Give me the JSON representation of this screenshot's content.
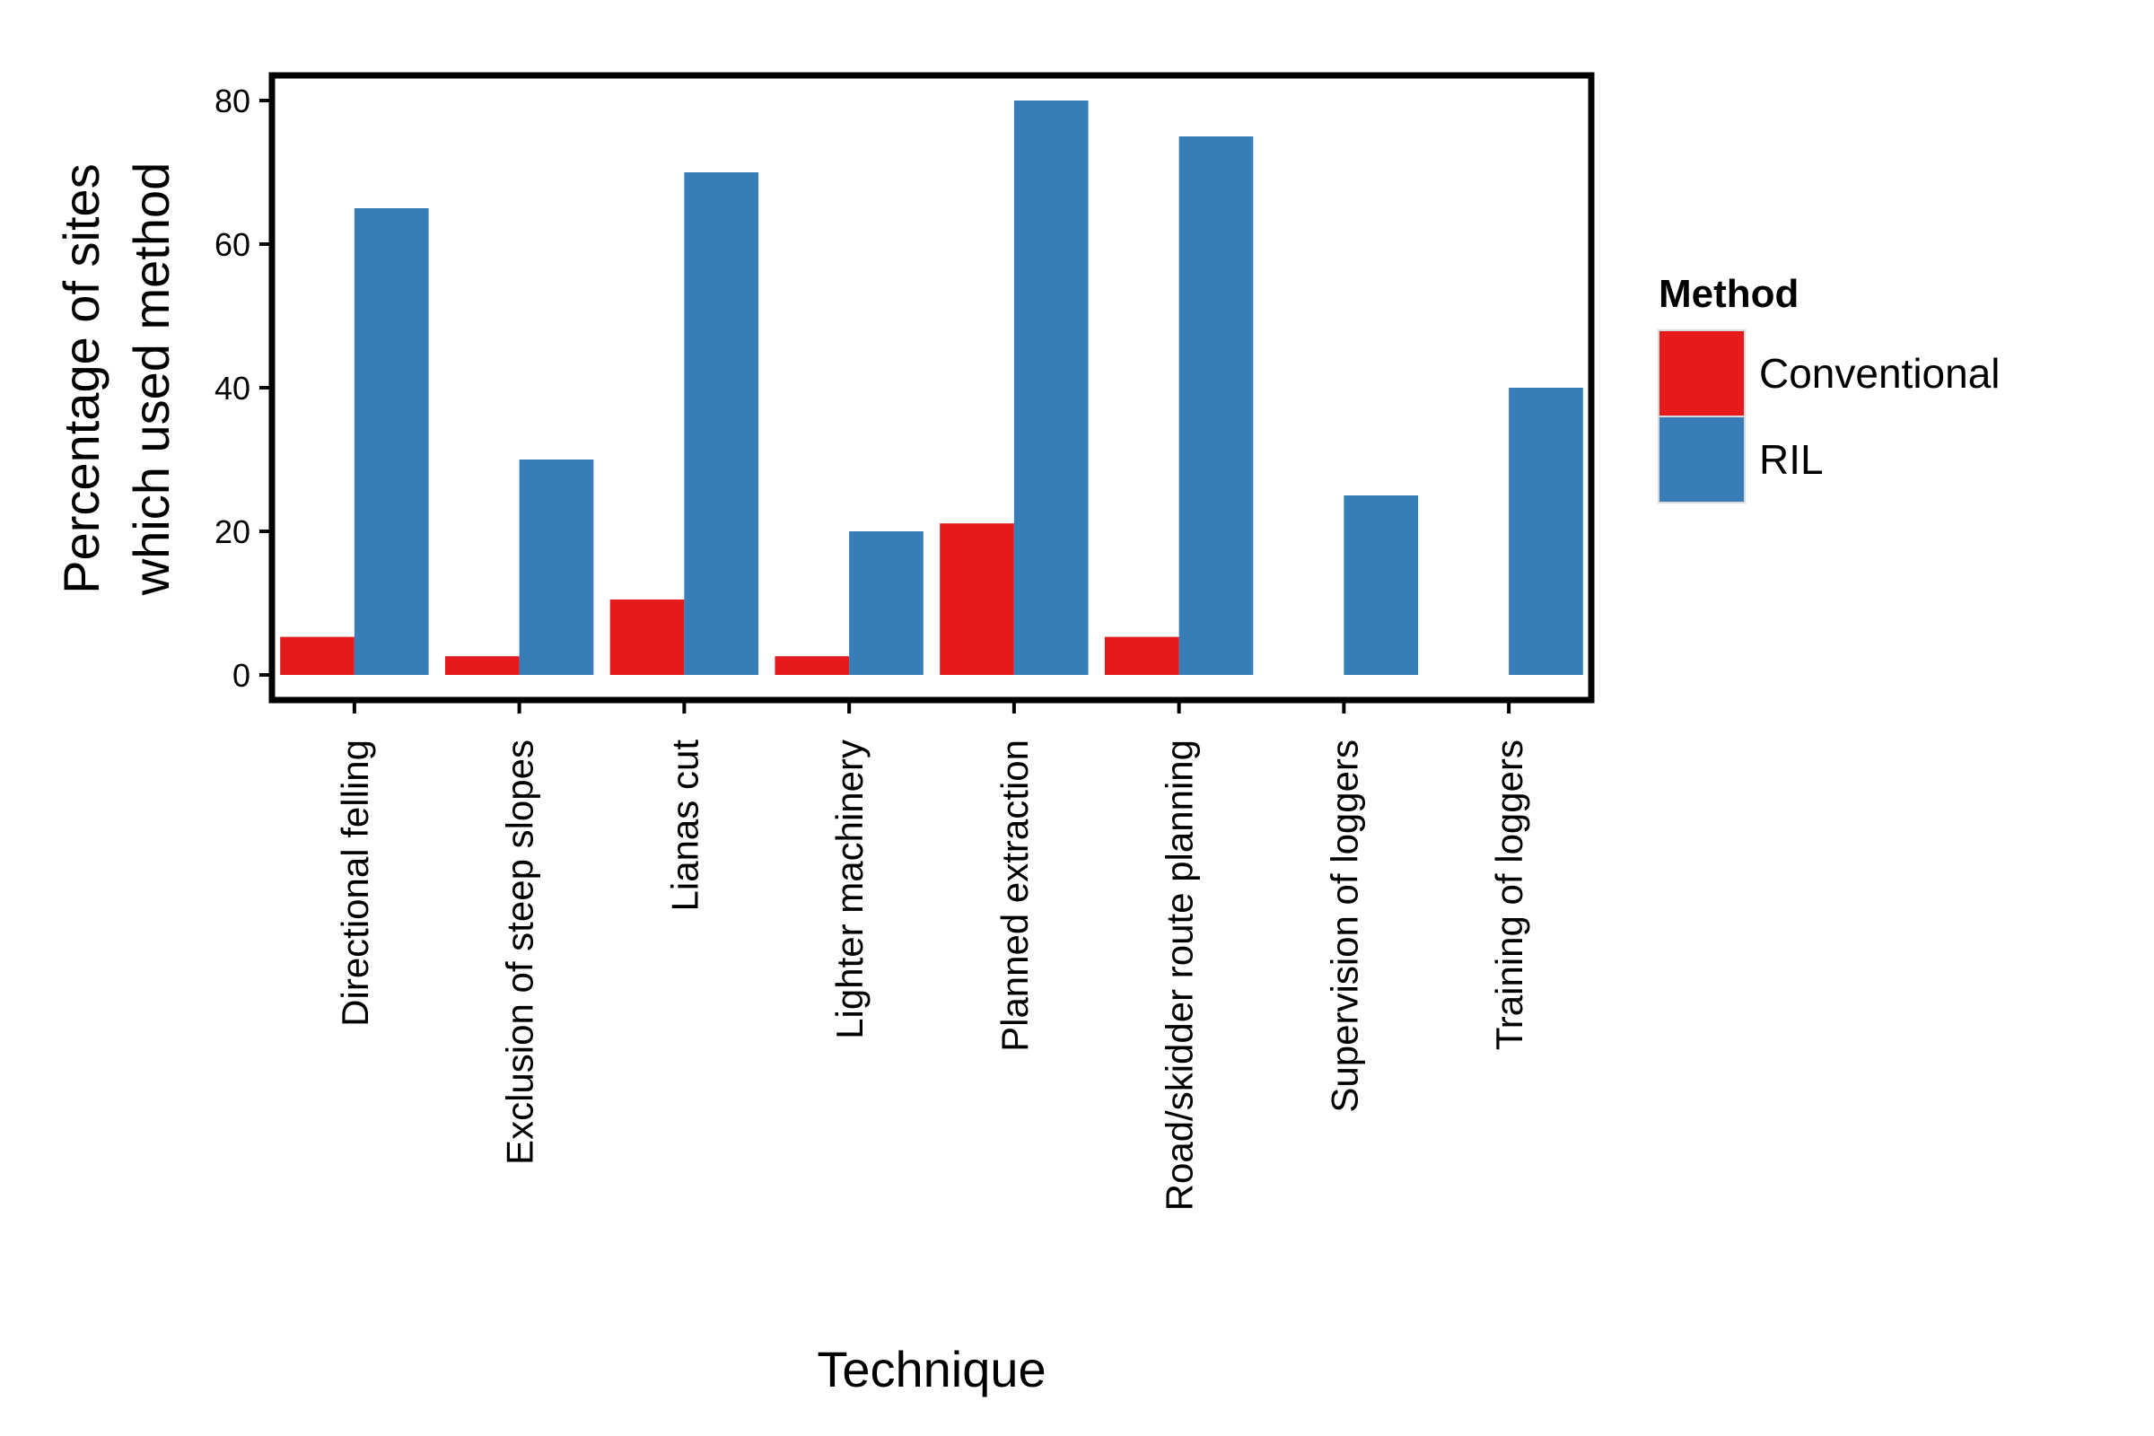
{
  "chart_data": {
    "type": "bar",
    "categories": [
      "Directional felling",
      "Exclusion of steep slopes",
      "Lianas cut",
      "Lighter machinery",
      "Planned extraction",
      "Road/skidder route planning",
      "Supervision of loggers",
      "Training of loggers"
    ],
    "series": [
      {
        "name": "Conventional",
        "color": "#E41A1C",
        "values": [
          5.3,
          2.6,
          10.5,
          2.6,
          21.1,
          5.3,
          0,
          0
        ]
      },
      {
        "name": "RIL",
        "color": "#377EB8",
        "values": [
          65,
          30,
          70,
          20,
          80,
          75,
          25,
          40
        ]
      }
    ],
    "title": "",
    "xlabel": "Technique",
    "ylabel_lines": [
      "Percentage of sites",
      "which used method"
    ],
    "ylim": [
      -3.5,
      83.5
    ],
    "yticks": [
      0,
      20,
      40,
      60,
      80
    ],
    "grid": false,
    "legend": {
      "title": "Method",
      "position": "right"
    }
  }
}
